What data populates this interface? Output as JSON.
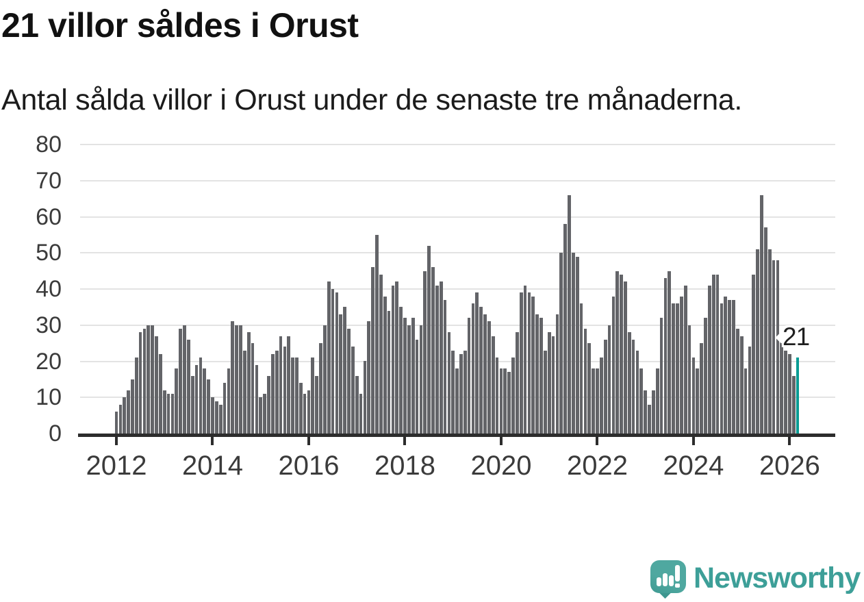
{
  "header": {
    "title": "21 villor såldes i Orust",
    "subtitle": "Antal sålda villor i Orust under de senaste tre månaderna."
  },
  "annotation": {
    "label": "21"
  },
  "logo": {
    "text": "Newsworthy",
    "icon": "newsworthy-speech-bubble-bar-chart"
  },
  "colors": {
    "background": "#ffffff",
    "bar": "#636468",
    "highlight": "#0a9c94",
    "gridline": "#e3e3e3",
    "axis": "#2d2d2d",
    "tick_text": "#3b3b3b",
    "title_text": "#111111",
    "logo_teal": "#3d9f98"
  },
  "chart_data": {
    "type": "bar",
    "title": "21 villor såldes i Orust",
    "subtitle": "Antal sålda villor i Orust under de senaste tre månaderna.",
    "frequency": "monthly",
    "start_month": "2012-01",
    "end_month": "2026-03",
    "unit": "sålda villor (rullande 3 månader)",
    "values": [
      6,
      8,
      10,
      12,
      15,
      21,
      28,
      29,
      30,
      30,
      27,
      22,
      12,
      11,
      11,
      18,
      29,
      30,
      26,
      16,
      19,
      21,
      18,
      15,
      10,
      9,
      8,
      14,
      18,
      31,
      30,
      30,
      23,
      28,
      25,
      19,
      10,
      11,
      16,
      22,
      23,
      27,
      24,
      27,
      21,
      21,
      14,
      11,
      12,
      21,
      16,
      25,
      30,
      42,
      40,
      39,
      33,
      35,
      29,
      24,
      16,
      11,
      20,
      31,
      46,
      55,
      44,
      38,
      34,
      41,
      42,
      35,
      32,
      30,
      32,
      26,
      30,
      45,
      52,
      46,
      41,
      42,
      37,
      28,
      23,
      18,
      22,
      23,
      32,
      36,
      39,
      35,
      33,
      31,
      27,
      21,
      18,
      18,
      17,
      21,
      28,
      39,
      41,
      39,
      38,
      33,
      32,
      23,
      28,
      27,
      33,
      50,
      58,
      66,
      50,
      49,
      36,
      29,
      25,
      18,
      18,
      21,
      26,
      30,
      38,
      45,
      44,
      42,
      28,
      26,
      23,
      18,
      12,
      8,
      12,
      18,
      32,
      43,
      45,
      36,
      36,
      38,
      41,
      30,
      21,
      18,
      25,
      32,
      41,
      44,
      44,
      36,
      38,
      37,
      37,
      29,
      27,
      18,
      24,
      44,
      51,
      66,
      57,
      51,
      48,
      48,
      26,
      23,
      22,
      16,
      21
    ],
    "highlight": {
      "month": "2026-03",
      "value": 21,
      "label": "21"
    },
    "ylim": [
      0,
      80
    ],
    "y_ticks": [
      0,
      10,
      20,
      30,
      40,
      50,
      60,
      70,
      80
    ],
    "x_ticks": [
      2012,
      2014,
      2016,
      2018,
      2020,
      2022,
      2024,
      2026
    ],
    "grid": "horizontal",
    "legend": "none"
  }
}
